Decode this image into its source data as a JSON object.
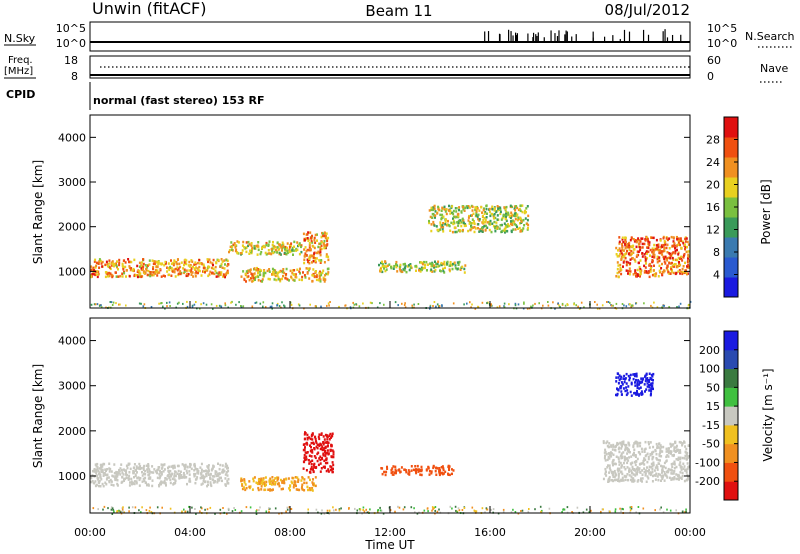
{
  "header": {
    "station": "Unwin (fitACF)",
    "beam": "Beam 11",
    "date": "08/Jul/2012"
  },
  "status_panels": {
    "nsky_label": "N.Sky",
    "nsky_ticks": [
      "10^5",
      "10^0"
    ],
    "nsearch_label": "N.Search",
    "nsearch_ticks": [
      "10^5",
      "10^0"
    ],
    "freq_label": "Freq.",
    "freq_unit": "[MHz]",
    "freq_ticks": [
      "18",
      "8"
    ],
    "nave_label": "Nave",
    "nave_ticks": [
      "60",
      "0"
    ],
    "cpid_label": "CPID",
    "cpid_text": "normal (fast stereo) 153 RF"
  },
  "chart_data": [
    {
      "type": "heatmap",
      "name": "power",
      "ylabel": "Slant Range [km]",
      "y_ticks": [
        "1000",
        "2000",
        "3000",
        "4000"
      ],
      "ylim": [
        180,
        4500
      ],
      "colorbar": {
        "label": "Power [dB]",
        "ticks": [
          "4",
          "8",
          "12",
          "16",
          "20",
          "24",
          "28"
        ],
        "range": [
          0,
          32
        ],
        "colors": [
          "#1a1ae0",
          "#2a5ad0",
          "#3a7ab0",
          "#3a9a5a",
          "#7ac040",
          "#e8d020",
          "#f09020",
          "#f05010",
          "#e01010"
        ]
      },
      "features": [
        {
          "t0": 0.0,
          "t1": 5.5,
          "r0": 900,
          "r1": 1300,
          "level": 24
        },
        {
          "t0": 5.5,
          "t1": 8.5,
          "r0": 1400,
          "r1": 1700,
          "level": 20
        },
        {
          "t0": 6.0,
          "t1": 9.5,
          "r0": 800,
          "r1": 1100,
          "level": 22
        },
        {
          "t0": 8.5,
          "t1": 9.5,
          "r0": 1200,
          "r1": 1900,
          "level": 24
        },
        {
          "t0": 11.5,
          "t1": 15.0,
          "r0": 1000,
          "r1": 1250,
          "level": 18
        },
        {
          "t0": 13.5,
          "t1": 17.5,
          "r0": 1900,
          "r1": 2500,
          "level": 18
        },
        {
          "t0": 21.0,
          "t1": 24.0,
          "r0": 900,
          "r1": 1800,
          "level": 26
        }
      ]
    },
    {
      "type": "heatmap",
      "name": "velocity",
      "xlabel": "Time UT",
      "ylabel": "Slant Range [km]",
      "x_ticks": [
        "00:00",
        "04:00",
        "08:00",
        "12:00",
        "16:00",
        "20:00",
        "00:00"
      ],
      "xlim": [
        0,
        24
      ],
      "y_ticks": [
        "1000",
        "2000",
        "3000",
        "4000"
      ],
      "ylim": [
        180,
        4500
      ],
      "colorbar": {
        "label": "Velocity [m s⁻¹]",
        "ticks": [
          "-200",
          "-100",
          "-50",
          "-15",
          "15",
          "50",
          "100",
          "200"
        ],
        "colors": [
          "#e01010",
          "#f05010",
          "#f09020",
          "#f0c020",
          "#c8c8c0",
          "#40c040",
          "#3a7a40",
          "#2a4ab0",
          "#1a1ae0"
        ]
      },
      "features": [
        {
          "t0": 0.0,
          "t1": 5.5,
          "r0": 800,
          "r1": 1300,
          "velocity": 0
        },
        {
          "t0": 6.0,
          "t1": 9.0,
          "r0": 700,
          "r1": 1000,
          "velocity": -40
        },
        {
          "t0": 8.5,
          "t1": 9.7,
          "r0": 1100,
          "r1": 2000,
          "velocity": -200
        },
        {
          "t0": 11.5,
          "t1": 14.5,
          "r0": 1050,
          "r1": 1250,
          "velocity": -120
        },
        {
          "t0": 21.0,
          "t1": 22.5,
          "r0": 2800,
          "r1": 3300,
          "velocity": 200
        },
        {
          "t0": 20.5,
          "t1": 24.0,
          "r0": 900,
          "r1": 1800,
          "velocity": 0
        }
      ]
    }
  ]
}
